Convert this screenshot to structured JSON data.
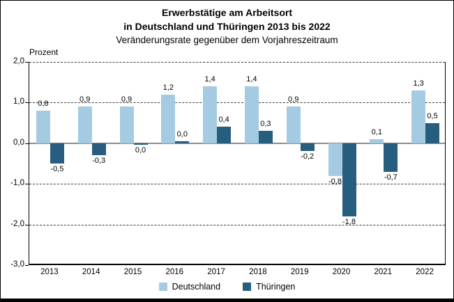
{
  "chart_data": {
    "type": "bar",
    "title_lines": [
      "Erwerbstätige am Arbeitsort",
      "in Deutschland und Thüringen 2013 bis 2022"
    ],
    "subtitle": "Veränderungsrate gegenüber dem Vorjahreszeitraum",
    "unit_label": "Prozent",
    "categories": [
      "2013",
      "2014",
      "2015",
      "2016",
      "2017",
      "2018",
      "2019",
      "2020",
      "2021",
      "2022"
    ],
    "series": [
      {
        "name": "Deutschland",
        "color": "#a5cbe2",
        "values": [
          0.8,
          0.9,
          0.9,
          1.2,
          1.4,
          1.4,
          0.9,
          -0.8,
          0.1,
          1.3
        ],
        "labels": [
          "0,8",
          "0,9",
          "0,9",
          "1,2",
          "1,4",
          "1,4",
          "0,9",
          "-0,8",
          "0,1",
          "1,3"
        ],
        "label_sides": [
          "above",
          "above",
          "above",
          "above",
          "above",
          "above",
          "above",
          "below",
          "above",
          "above"
        ]
      },
      {
        "name": "Thüringen",
        "color": "#275d7e",
        "values": [
          -0.5,
          -0.3,
          0.0,
          0.0,
          0.4,
          0.3,
          -0.2,
          -1.8,
          -0.7,
          0.5
        ],
        "labels": [
          "-0,5",
          "-0,3",
          "0,0",
          "0,0",
          "0,4",
          "0,3",
          "-0,2",
          "-1,8",
          "-0,7",
          "0,5"
        ],
        "label_sides": [
          "below",
          "below",
          "below",
          "above",
          "above",
          "above",
          "below",
          "below",
          "below",
          "above"
        ]
      }
    ],
    "ylim": [
      -3,
      2
    ],
    "yticks": [
      {
        "value": 2,
        "label": "2,0"
      },
      {
        "value": 1,
        "label": "1,0"
      },
      {
        "value": 0,
        "label": "0,0"
      },
      {
        "value": -1,
        "label": "-1,0"
      },
      {
        "value": -2,
        "label": "-2,0"
      },
      {
        "value": -3,
        "label": "-3,0"
      }
    ],
    "grid": "horizontal dashed at 2.0, 1.0, -1.0, -2.0; solid gray line at 0.0",
    "legend_position": "bottom-center",
    "colors": {
      "deutschland_bar": "#a5cbe2",
      "thueringen_bar": "#275d7e",
      "zero_line": "#8c8c8c",
      "gridline": "#3a3a3a"
    }
  }
}
